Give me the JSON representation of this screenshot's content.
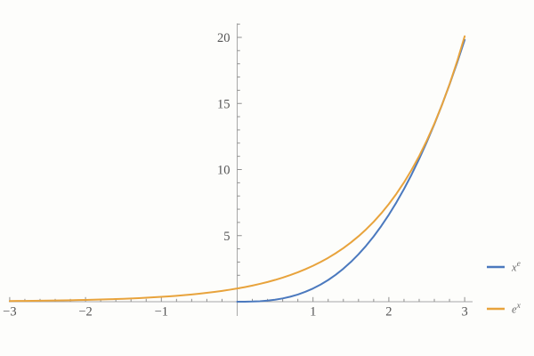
{
  "chart_data": {
    "type": "line",
    "title": "",
    "xlabel": "",
    "ylabel": "",
    "background_color": "#fdfdfb",
    "axis_color": "#a8a8a8",
    "tick_color": "#8f8f8f",
    "tick_label_color": "#545454",
    "grid": false,
    "frame": false,
    "legend_position": "right-outside-bottom",
    "x_range": [
      -3,
      3
    ],
    "y_range": [
      0,
      20
    ],
    "x_ticks": [
      -3,
      -2,
      -1,
      1,
      2,
      3
    ],
    "x_tick_labels": [
      "−3",
      "−2",
      "−1",
      "1",
      "2",
      "3"
    ],
    "y_ticks": [
      5,
      10,
      15,
      20
    ],
    "y_tick_labels": [
      "5",
      "10",
      "15",
      "20"
    ],
    "x_minor_step": 0.2,
    "y_minor_step": 1,
    "y_minor_max": 21,
    "series": [
      {
        "name": "x-to-the-e",
        "label_base": "x",
        "label_sup": "e",
        "color": "#4b79be",
        "stroke_width": 2,
        "points": [
          [
            0,
            0
          ],
          [
            0.1,
            0.0019
          ],
          [
            0.2,
            0.0126
          ],
          [
            0.3,
            0.0379
          ],
          [
            0.4,
            0.0829
          ],
          [
            0.5,
            0.152
          ],
          [
            0.6,
            0.2494
          ],
          [
            0.7,
            0.3793
          ],
          [
            0.8,
            0.5453
          ],
          [
            0.9,
            0.751
          ],
          [
            1,
            1
          ],
          [
            1.1,
            1.2958
          ],
          [
            1.2,
            1.6415
          ],
          [
            1.3,
            2.0405
          ],
          [
            1.4,
            2.496
          ],
          [
            1.5,
            3.0107
          ],
          [
            1.6,
            3.5883
          ],
          [
            1.7,
            4.2309
          ],
          [
            1.8,
            4.9422
          ],
          [
            1.9,
            5.7245
          ],
          [
            2,
            6.5809
          ],
          [
            2.1,
            7.5137
          ],
          [
            2.2,
            8.5261
          ],
          [
            2.3,
            9.6226
          ],
          [
            2.4,
            10.8049
          ],
          [
            2.5,
            12.0713
          ],
          [
            2.6,
            13.4288
          ],
          [
            2.7,
            14.8804
          ],
          [
            2.8,
            16.4262
          ],
          [
            2.9,
            18.0689
          ],
          [
            3,
            19.811
          ]
        ]
      },
      {
        "name": "e-to-the-x",
        "label_base": "e",
        "label_sup": "x",
        "color": "#e8a33c",
        "stroke_width": 2,
        "points": [
          [
            -3,
            0.0498
          ],
          [
            -2.9,
            0.055
          ],
          [
            -2.8,
            0.0608
          ],
          [
            -2.7,
            0.0672
          ],
          [
            -2.6,
            0.0743
          ],
          [
            -2.5,
            0.0821
          ],
          [
            -2.4,
            0.0907
          ],
          [
            -2.3,
            0.1003
          ],
          [
            -2.2,
            0.1108
          ],
          [
            -2.1,
            0.1225
          ],
          [
            -2,
            0.1353
          ],
          [
            -1.9,
            0.1496
          ],
          [
            -1.8,
            0.1653
          ],
          [
            -1.7,
            0.1827
          ],
          [
            -1.6,
            0.2019
          ],
          [
            -1.5,
            0.2231
          ],
          [
            -1.4,
            0.2466
          ],
          [
            -1.3,
            0.2725
          ],
          [
            -1.2,
            0.3012
          ],
          [
            -1.1,
            0.3329
          ],
          [
            -1,
            0.3679
          ],
          [
            -0.9,
            0.4066
          ],
          [
            -0.8,
            0.4493
          ],
          [
            -0.7,
            0.4966
          ],
          [
            -0.6,
            0.5488
          ],
          [
            -0.5,
            0.6065
          ],
          [
            -0.4,
            0.6703
          ],
          [
            -0.3,
            0.7408
          ],
          [
            -0.2,
            0.8187
          ],
          [
            -0.1,
            0.9048
          ],
          [
            0,
            1
          ],
          [
            0.1,
            1.1052
          ],
          [
            0.2,
            1.2214
          ],
          [
            0.3,
            1.3499
          ],
          [
            0.4,
            1.4918
          ],
          [
            0.5,
            1.6487
          ],
          [
            0.6,
            1.8221
          ],
          [
            0.7,
            2.0138
          ],
          [
            0.8,
            2.2255
          ],
          [
            0.9,
            2.4596
          ],
          [
            1,
            2.7183
          ],
          [
            1.1,
            3.0042
          ],
          [
            1.2,
            3.3201
          ],
          [
            1.3,
            3.6693
          ],
          [
            1.4,
            4.0552
          ],
          [
            1.5,
            4.4817
          ],
          [
            1.6,
            4.953
          ],
          [
            1.7,
            5.4739
          ],
          [
            1.8,
            6.0496
          ],
          [
            1.9,
            6.6859
          ],
          [
            2,
            7.3891
          ],
          [
            2.1,
            8.1662
          ],
          [
            2.2,
            9.025
          ],
          [
            2.3,
            9.9742
          ],
          [
            2.4,
            11.0232
          ],
          [
            2.5,
            12.1825
          ],
          [
            2.6,
            13.4637
          ],
          [
            2.7,
            14.8797
          ],
          [
            2.8,
            16.4446
          ],
          [
            2.9,
            18.1741
          ],
          [
            3,
            20.0855
          ]
        ]
      }
    ]
  }
}
